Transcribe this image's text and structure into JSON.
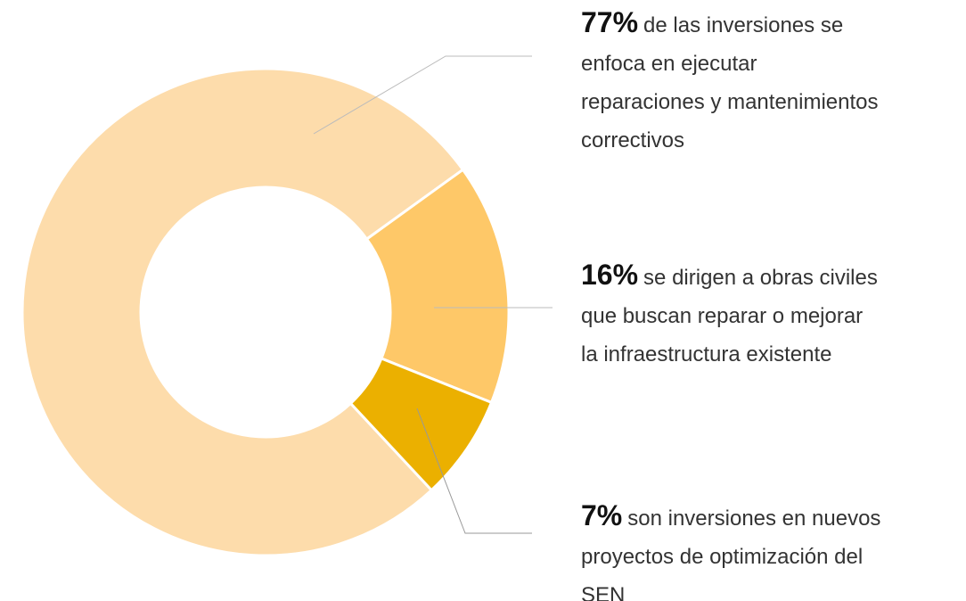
{
  "chart_data": {
    "type": "donut",
    "values": [
      77,
      16,
      7
    ],
    "value_labels": [
      "77%",
      "16%",
      "7%"
    ],
    "categories": [
      "de las inversiones se\nenfoca en ejecutar\nreparaciones y mantenimientos\ncorrectivos",
      "se dirigen a obras civiles\nque buscan reparar o mejorar\nla infraestructura existente",
      "son inversiones en nuevos\nproyectos de optimización del\nSEN"
    ],
    "colors": [
      "#fddcab",
      "#fec868",
      "#ebb000"
    ]
  }
}
